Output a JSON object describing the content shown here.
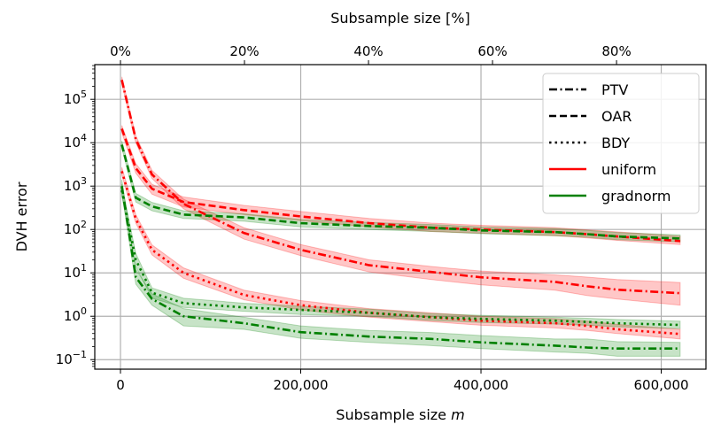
{
  "chart_data": {
    "type": "line",
    "xlabel": "Subsample size ",
    "xlabel_italic": "m",
    "ylabel": "DVH error",
    "top_xlabel": "Subsample size [%]",
    "yscale": "log",
    "xlim": [
      -28500,
      649600
    ],
    "ylim_log10": [
      -1.22,
      5.8
    ],
    "grid": true,
    "legend_position": "top-right",
    "x_ticks": [
      {
        "value": 0,
        "label": "0"
      },
      {
        "value": 200000,
        "label": "200,000"
      },
      {
        "value": 400000,
        "label": "400,000"
      },
      {
        "value": 600000,
        "label": "600,000"
      }
    ],
    "y_ticks": [
      {
        "exp": 5,
        "base": "10",
        "sup": "5"
      },
      {
        "exp": 4,
        "base": "10",
        "sup": "4"
      },
      {
        "exp": 3,
        "base": "10",
        "sup": "3"
      },
      {
        "exp": 2,
        "base": "10",
        "sup": "2"
      },
      {
        "exp": 1,
        "base": "10",
        "sup": "1"
      },
      {
        "exp": 0,
        "base": "10",
        "sup": "0"
      },
      {
        "exp": -1,
        "base": "10",
        "sup": "−1"
      }
    ],
    "top_ticks": [
      {
        "value": 0,
        "label": "0%"
      },
      {
        "value": 20,
        "label": "20%"
      },
      {
        "value": 40,
        "label": "40%"
      },
      {
        "value": 60,
        "label": "60%"
      },
      {
        "value": 80,
        "label": "80%"
      }
    ],
    "top_axis_full_size": 688000,
    "legend": [
      {
        "label": "PTV",
        "style": "dashdot",
        "color": "#000000"
      },
      {
        "label": "OAR",
        "style": "dashed",
        "color": "#000000"
      },
      {
        "label": "BDY",
        "style": "dotted",
        "color": "#000000"
      },
      {
        "label": "uniform",
        "style": "solid",
        "color": "#ff0000"
      },
      {
        "label": "gradnorm",
        "style": "solid",
        "color": "#008000"
      }
    ],
    "x": [
      1500,
      17000,
      35000,
      70000,
      137000,
      200000,
      276000,
      345000,
      400000,
      482000,
      518000,
      551000,
      621000
    ],
    "series": [
      {
        "method": "uniform",
        "region": "PTV",
        "color": "#ff0000",
        "style": "dashdot",
        "values": [
          280000,
          12000,
          1850,
          390,
          83,
          34,
          15,
          10.5,
          7.9,
          6.2,
          4.9,
          4.1,
          3.4
        ],
        "lower": [
          230000,
          10000,
          1500,
          300,
          60,
          25,
          10.5,
          7,
          5.3,
          4,
          3,
          2.5,
          1.8
        ],
        "upper": [
          330000,
          14500,
          2300,
          500,
          110,
          45,
          20,
          14,
          11,
          9,
          8,
          7,
          6
        ]
      },
      {
        "method": "uniform",
        "region": "OAR",
        "color": "#ff0000",
        "style": "dashed",
        "values": [
          21000,
          2600,
          870,
          430,
          280,
          200,
          140,
          110,
          100,
          87,
          78,
          69,
          54
        ],
        "lower": [
          17000,
          2000,
          650,
          330,
          220,
          160,
          115,
          90,
          82,
          72,
          64,
          56,
          45
        ],
        "upper": [
          25000,
          3300,
          1100,
          560,
          360,
          260,
          180,
          140,
          125,
          110,
          98,
          88,
          70
        ]
      },
      {
        "method": "uniform",
        "region": "BDY",
        "color": "#ff0000",
        "style": "dotted",
        "values": [
          2200,
          175,
          34,
          10,
          3.1,
          1.8,
          1.2,
          0.95,
          0.79,
          0.69,
          0.6,
          0.5,
          0.39
        ],
        "lower": [
          1800,
          140,
          26,
          7.5,
          2.4,
          1.4,
          0.95,
          0.75,
          0.62,
          0.54,
          0.47,
          0.4,
          0.3
        ],
        "upper": [
          2700,
          220,
          44,
          13,
          4,
          2.3,
          1.5,
          1.2,
          1.0,
          0.88,
          0.77,
          0.65,
          0.5
        ]
      },
      {
        "method": "gradnorm",
        "region": "PTV",
        "color": "#008000",
        "style": "dashdot",
        "values": [
          1000,
          8,
          2.5,
          1.0,
          0.69,
          0.43,
          0.34,
          0.3,
          0.25,
          0.21,
          0.19,
          0.18,
          0.18
        ],
        "lower": [
          700,
          5.5,
          1.8,
          0.6,
          0.5,
          0.31,
          0.25,
          0.21,
          0.18,
          0.15,
          0.14,
          0.12,
          0.12
        ],
        "upper": [
          1400,
          12,
          3.3,
          1.5,
          0.95,
          0.6,
          0.47,
          0.42,
          0.36,
          0.3,
          0.3,
          0.26,
          0.25
        ]
      },
      {
        "method": "gradnorm",
        "region": "OAR",
        "color": "#008000",
        "style": "dashed",
        "values": [
          9000,
          540,
          340,
          220,
          190,
          140,
          120,
          110,
          95,
          87,
          78,
          69,
          62
        ],
        "lower": [
          7500,
          430,
          270,
          180,
          155,
          115,
          100,
          90,
          80,
          72,
          66,
          58,
          52
        ],
        "upper": [
          11000,
          680,
          420,
          270,
          230,
          170,
          145,
          130,
          115,
          105,
          95,
          85,
          75
        ]
      },
      {
        "method": "gradnorm",
        "region": "BDY",
        "color": "#008000",
        "style": "dotted",
        "values": [
          800,
          20,
          3.5,
          2.0,
          1.6,
          1.4,
          1.2,
          0.95,
          0.87,
          0.79,
          0.74,
          0.69,
          0.63
        ],
        "lower": [
          600,
          14,
          2.6,
          1.6,
          1.3,
          1.1,
          1.0,
          0.8,
          0.72,
          0.66,
          0.62,
          0.57,
          0.52
        ],
        "upper": [
          1100,
          28,
          4.5,
          2.6,
          2.0,
          1.7,
          1.45,
          1.15,
          1.05,
          0.95,
          0.9,
          0.84,
          0.77
        ]
      }
    ]
  }
}
